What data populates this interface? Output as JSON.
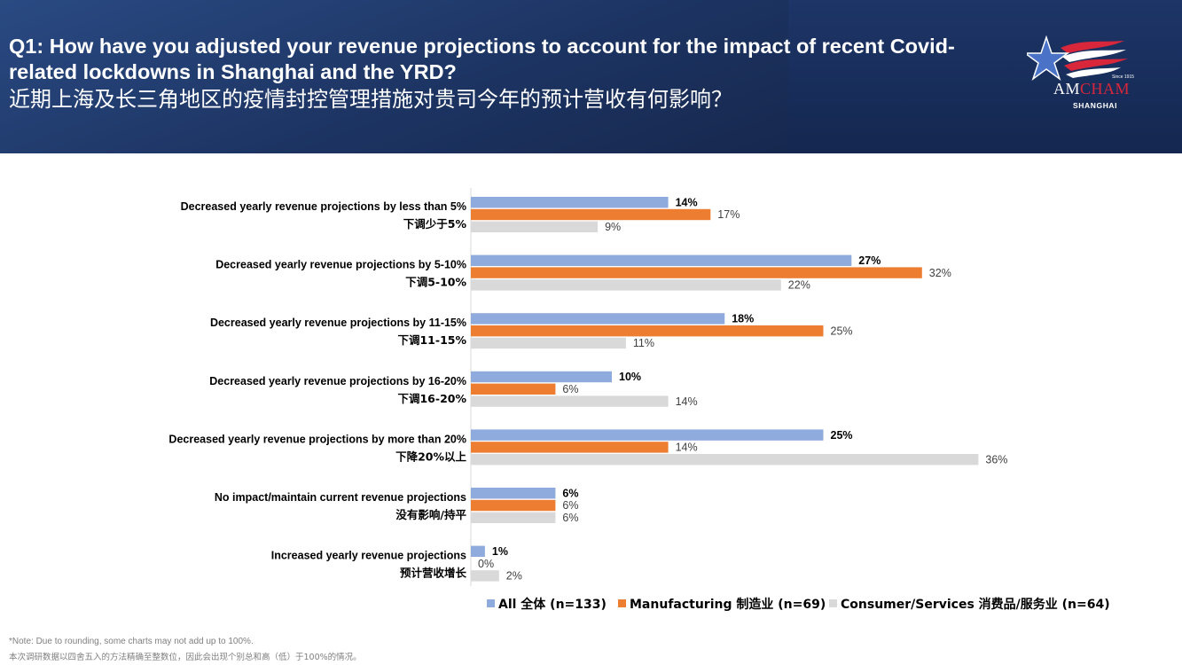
{
  "header": {
    "title_en": "Q1: How have you adjusted your revenue projections to account for the impact of recent Covid-related lockdowns in Shanghai and the YRD?",
    "title_zh": "近期上海及长三角地区的疫情封控管理措施对贵司今年的预计营收有何影响？",
    "logo_am": "AM",
    "logo_cham": "CHAM",
    "logo_city": "SHANGHAI",
    "logo_since": "Since 1915"
  },
  "colors": {
    "all": "#8faadc",
    "manufacturing": "#ed7d31",
    "consumer": "#d9d9d9",
    "brand_red": "#d8263a",
    "header_bg": "#1c3361"
  },
  "chart_data": {
    "type": "bar",
    "orientation": "horizontal",
    "categories": [
      {
        "en": "Decreased yearly revenue projections by less than 5%",
        "zh": "下调少于5%"
      },
      {
        "en": "Decreased yearly revenue projections by 5-10%",
        "zh": "下调5-10%"
      },
      {
        "en": "Decreased yearly revenue projections by 11-15%",
        "zh": "下调11-15%"
      },
      {
        "en": "Decreased yearly revenue projections by 16-20%",
        "zh": "下调16-20%"
      },
      {
        "en": "Decreased yearly revenue projections by more than 20%",
        "zh": "下降20%以上"
      },
      {
        "en": "No impact/maintain current revenue projections",
        "zh": "没有影响/持平"
      },
      {
        "en": "Increased yearly revenue projections",
        "zh": "预计营收增长"
      }
    ],
    "series": [
      {
        "name": "All 全体 (n=133)",
        "color": "#8faadc",
        "bold_labels": true,
        "values": [
          14,
          27,
          18,
          10,
          25,
          6,
          1
        ]
      },
      {
        "name": "Manufacturing 制造业 (n=69)",
        "color": "#ed7d31",
        "bold_labels": false,
        "values": [
          17,
          32,
          25,
          6,
          14,
          6,
          0
        ]
      },
      {
        "name": "Consumer/Services 消费品/服务业 (n=64)",
        "color": "#d9d9d9",
        "bold_labels": false,
        "values": [
          9,
          22,
          11,
          14,
          36,
          6,
          2
        ]
      }
    ],
    "value_suffix": "%",
    "legend_position": "bottom",
    "grid": false
  },
  "footnote": {
    "line1": "*Note: Due to rounding, some charts may not add up to 100%.",
    "line2": "本次调研数据以四舍五入的方法精确至整数位，因此会出现个别总和高（低）于100%的情况。"
  }
}
